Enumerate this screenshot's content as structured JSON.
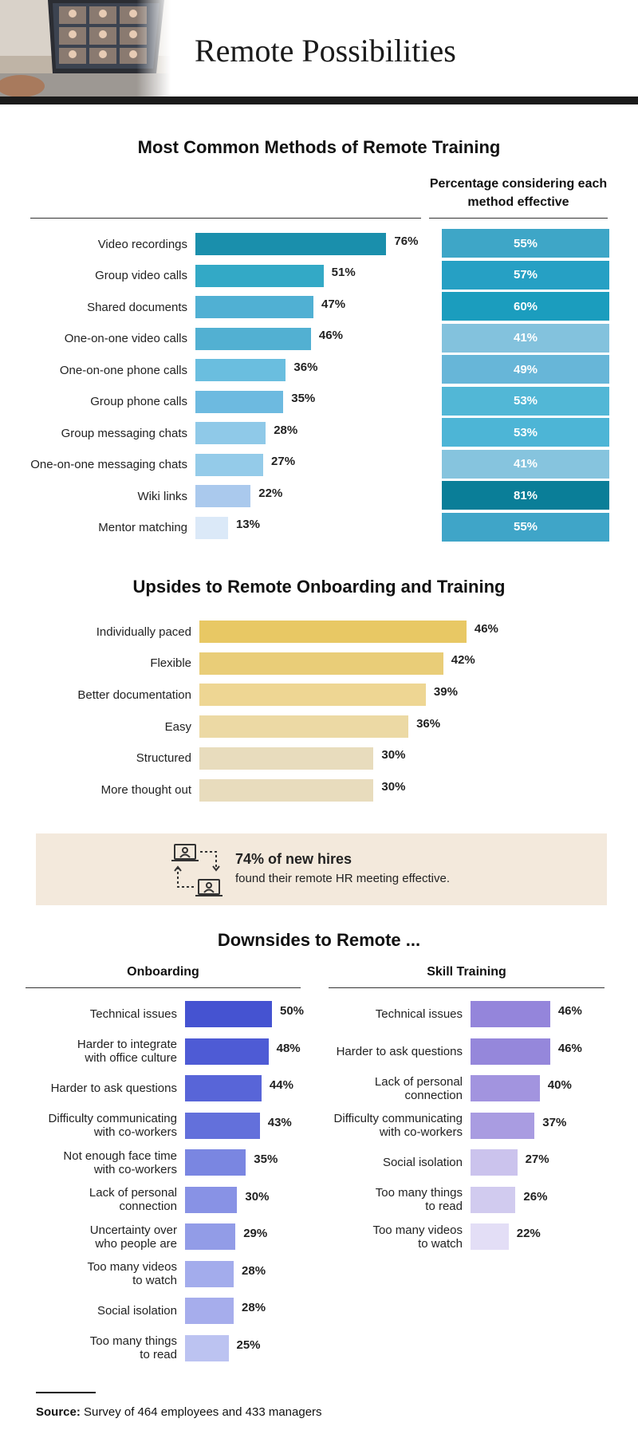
{
  "header": {
    "title": "Remote Possibilities"
  },
  "footer": {
    "source_label": "Source:",
    "source_text": " Survey of 464 employees and 433 managers"
  },
  "callout": {
    "headline": "74% of new hires",
    "text": "found their remote HR meeting effective.",
    "icon": "remote-meeting-icon"
  },
  "chart_data": [
    {
      "type": "bar",
      "orientation": "horizontal",
      "title": "Most Common Methods of Remote Training",
      "categories": [
        "Video recordings",
        "Group video calls",
        "Shared documents",
        "One-on-one video calls",
        "One-on-one phone calls",
        "Group phone calls",
        "Group messaging chats",
        "One-on-one messaging chats",
        "Wiki links",
        "Mentor matching"
      ],
      "values": [
        76,
        51,
        47,
        46,
        36,
        35,
        28,
        27,
        22,
        13
      ],
      "value_labels": [
        "76%",
        "51%",
        "47%",
        "46%",
        "36%",
        "35%",
        "28%",
        "27%",
        "22%",
        "13%"
      ],
      "colors": [
        "#1a8fac",
        "#33a9c6",
        "#50b0d3",
        "#52b0d2",
        "#6abedf",
        "#6dbae0",
        "#8fc9e8",
        "#94cbe9",
        "#aac9ed",
        "#dbe9f8"
      ],
      "xlim": [
        0,
        100
      ],
      "table": {
        "title": "Percentage considering each method effective",
        "values": [
          55,
          57,
          60,
          41,
          49,
          53,
          53,
          41,
          81,
          55
        ],
        "value_labels": [
          "55%",
          "57%",
          "60%",
          "41%",
          "49%",
          "53%",
          "53%",
          "41%",
          "81%",
          "55%"
        ],
        "colors": [
          "#3ea6c7",
          "#26a0c4",
          "#1b9dbe",
          "#83c2dd",
          "#67b6d8",
          "#52b7d6",
          "#4db5d6",
          "#86c4de",
          "#0a7e98",
          "#3fa5c8"
        ]
      }
    },
    {
      "type": "bar",
      "orientation": "horizontal",
      "title": "Upsides to Remote Onboarding and Training",
      "categories": [
        "Individually paced",
        "Flexible",
        "Better documentation",
        "Easy",
        "Structured",
        "More thought out"
      ],
      "values": [
        46,
        42,
        39,
        36,
        30,
        30
      ],
      "value_labels": [
        "46%",
        "42%",
        "39%",
        "36%",
        "30%",
        "30%"
      ],
      "colors": [
        "#e8c864",
        "#e9cd78",
        "#eed693",
        "#ecd9a4",
        "#e8dcbd",
        "#e8dcbd"
      ],
      "xlim": [
        0,
        100
      ]
    },
    {
      "type": "bar",
      "orientation": "horizontal",
      "title": "Downsides to Remote ...",
      "subtitle": "Onboarding",
      "categories": [
        "Technical issues",
        [
          "Harder to integrate",
          "with office culture"
        ],
        "Harder to ask questions",
        [
          "Difficulty communicating",
          "with co-workers"
        ],
        [
          "Not enough face time",
          "with co-workers"
        ],
        [
          "Lack of personal",
          "connection"
        ],
        [
          "Uncertainty over",
          "who people are"
        ],
        [
          "Too many videos",
          "to watch"
        ],
        "Social isolation",
        [
          "Too many things",
          "to read"
        ]
      ],
      "values": [
        50,
        48,
        44,
        43,
        35,
        30,
        29,
        28,
        28,
        25
      ],
      "value_labels": [
        "50%",
        "48%",
        "44%",
        "43%",
        "35%",
        "30%",
        "29%",
        "28%",
        "28%",
        "25%"
      ],
      "colors": [
        "#4553d1",
        "#4e5bd5",
        "#5865d8",
        "#6370db",
        "#7a86e1",
        "#8892e5",
        "#929ce7",
        "#a3acec",
        "#a6adec",
        "#bcc3f1"
      ],
      "xlim": [
        0,
        100
      ]
    },
    {
      "type": "bar",
      "orientation": "horizontal",
      "subtitle": "Skill Training",
      "categories": [
        "Technical issues",
        "Harder to ask questions",
        [
          "Lack of personal",
          "connection"
        ],
        [
          "Difficulty communicating",
          "with co-workers"
        ],
        "Social isolation",
        [
          "Too many things",
          "to read"
        ],
        [
          "Too many videos",
          "to watch"
        ]
      ],
      "values": [
        46,
        46,
        40,
        37,
        27,
        26,
        22
      ],
      "value_labels": [
        "46%",
        "46%",
        "40%",
        "37%",
        "27%",
        "26%",
        "22%"
      ],
      "colors": [
        "#9485db",
        "#9587db",
        "#a294df",
        "#a99ce1",
        "#cbc3ed",
        "#d1cbef",
        "#e3def6"
      ],
      "xlim": [
        0,
        100
      ]
    }
  ]
}
